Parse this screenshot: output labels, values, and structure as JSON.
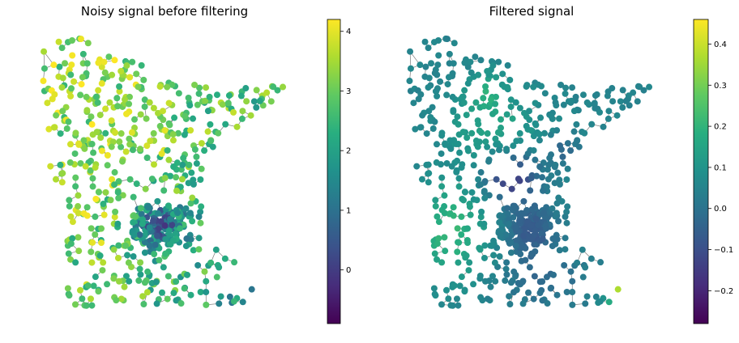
{
  "chart_data": [
    {
      "type": "graph-scatter",
      "title": "Noisy signal before filtering",
      "colormap": "viridis",
      "colorbar": {
        "range": [
          -0.9,
          4.2
        ],
        "ticks": [
          0,
          1,
          2,
          3,
          4
        ],
        "tick_labels": [
          "0",
          "1",
          "2",
          "3",
          "4"
        ]
      },
      "axes_visible": false
    },
    {
      "type": "graph-scatter",
      "title": "Filtered signal",
      "colormap": "viridis",
      "colorbar": {
        "range": [
          -0.28,
          0.46
        ],
        "ticks": [
          -0.2,
          -0.1,
          0.0,
          0.1,
          0.2,
          0.3,
          0.4
        ],
        "tick_labels": [
          "−0.2",
          "−0.1",
          "0.0",
          "0.1",
          "0.2",
          "0.3",
          "0.4"
        ]
      },
      "axes_visible": false
    }
  ]
}
